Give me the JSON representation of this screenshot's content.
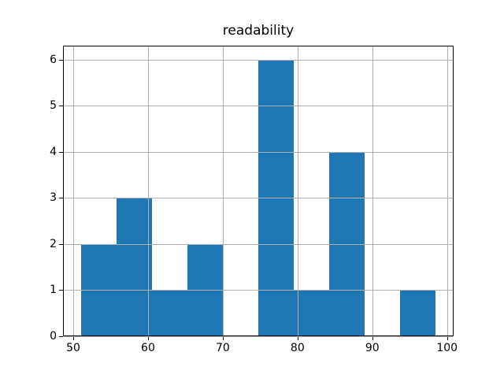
{
  "title": "readability",
  "chart_data": {
    "type": "bar",
    "subtype": "histogram",
    "title": "readability",
    "xlabel": "",
    "ylabel": "",
    "bin_edges": [
      51,
      55.75,
      60.5,
      65.25,
      70,
      74.75,
      79.5,
      84.25,
      89,
      93.75,
      98.5
    ],
    "counts": [
      2,
      3,
      1,
      2,
      0,
      6,
      1,
      4,
      0,
      1
    ],
    "xticks": [
      50,
      60,
      70,
      80,
      90,
      100
    ],
    "yticks": [
      0,
      1,
      2,
      3,
      4,
      5,
      6
    ],
    "xlim": [
      48.625,
      100.875
    ],
    "ylim": [
      0,
      6.3
    ],
    "grid": true,
    "legend": "none",
    "colors": {
      "bar": "#1f77b4",
      "grid": "#b0b0b0",
      "spine": "#000000",
      "text": "#000000",
      "background": "#ffffff"
    }
  }
}
